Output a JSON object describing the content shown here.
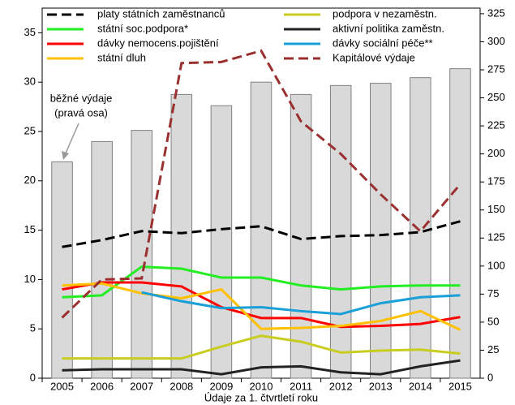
{
  "chart_data": {
    "type": "combo",
    "x_label": "Údaje za 1. čtvrtletí roku",
    "annotation": [
      "běžné výdaje",
      "(pravá osa)"
    ],
    "categories": [
      "2005",
      "2006",
      "2007",
      "2008",
      "2009",
      "2010",
      "2011",
      "2012",
      "2013",
      "2014",
      "2015"
    ],
    "ylim": [
      0,
      37.5
    ],
    "yticks": [
      0,
      5,
      10,
      15,
      20,
      25,
      30,
      35
    ],
    "y2lim": [
      0,
      330
    ],
    "y2ticks": [
      0,
      25,
      50,
      75,
      100,
      125,
      150,
      175,
      200,
      225,
      250,
      275,
      300,
      325
    ],
    "bars": {
      "color": "#d9d9d9",
      "axis": "y2",
      "values": [
        193,
        211,
        221,
        253,
        243,
        264,
        253,
        261,
        263,
        268,
        276
      ]
    },
    "series": [
      {
        "name": "platy státních zaměstnanců",
        "color": "#000000",
        "dashed": true,
        "values": [
          13.3,
          14.0,
          14.9,
          14.7,
          15.1,
          15.4,
          14.1,
          14.4,
          14.5,
          14.8,
          15.9
        ]
      },
      {
        "name": "státní soc.podpora*",
        "color": "#22ee22",
        "values": [
          8.2,
          8.4,
          11.3,
          11.1,
          10.2,
          10.2,
          9.4,
          9.0,
          9.3,
          9.4,
          9.4
        ]
      },
      {
        "name": "dávky nemocens.pojištění",
        "color": "#ff0000",
        "values": [
          9.0,
          9.7,
          9.7,
          9.3,
          7.2,
          6.1,
          6.1,
          5.2,
          5.3,
          5.5,
          6.2
        ]
      },
      {
        "name": "státní dluh",
        "color": "#ffc000",
        "values": [
          9.4,
          9.6,
          8.6,
          8.1,
          9.0,
          5.0,
          5.1,
          5.3,
          5.8,
          6.8,
          4.9
        ]
      },
      {
        "name": "podpora  v nezaměstn.",
        "color": "#c8cd20",
        "values": [
          2.0,
          2.0,
          2.0,
          2.0,
          3.2,
          4.3,
          3.7,
          2.6,
          2.8,
          2.9,
          2.5
        ]
      },
      {
        "name": "aktivní politika zaměstn.",
        "color": "#222222",
        "values": [
          0.8,
          0.9,
          0.9,
          0.9,
          0.4,
          1.1,
          1.2,
          0.6,
          0.4,
          1.2,
          1.8
        ]
      },
      {
        "name": "dávky sociální péče**",
        "color": "#1aa0d8",
        "values": [
          null,
          null,
          8.7,
          7.8,
          7.1,
          7.2,
          6.8,
          6.5,
          7.6,
          8.2,
          8.4
        ]
      },
      {
        "name": "Kapitálové výdaje",
        "color": "#9b3030",
        "dashed": true,
        "axis": "y2",
        "values": [
          54,
          88,
          89,
          281,
          282,
          292,
          229,
          200,
          164,
          131,
          173
        ]
      }
    ]
  }
}
